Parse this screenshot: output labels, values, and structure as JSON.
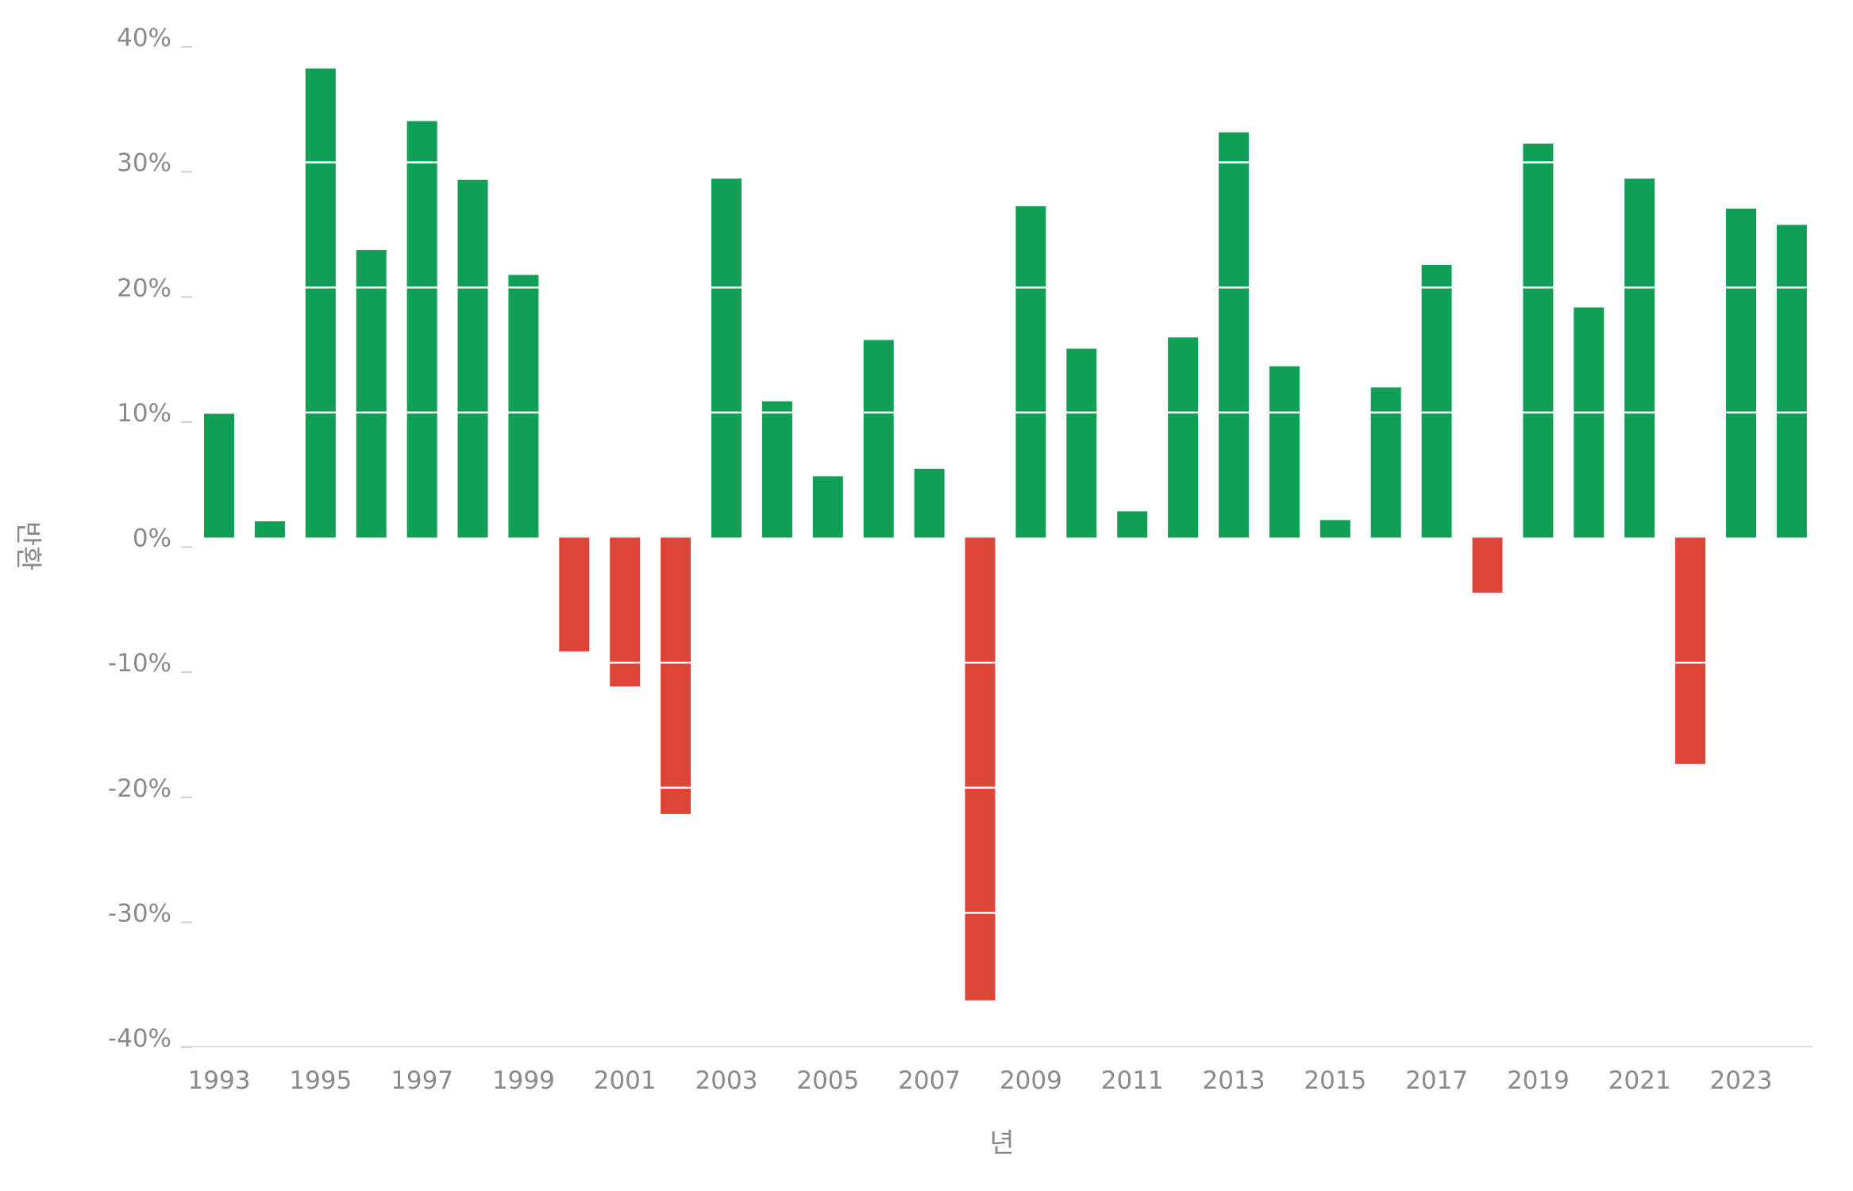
{
  "chart_data": {
    "type": "bar",
    "xlabel": "년",
    "ylabel": "반환",
    "ylim": [
      -40,
      40
    ],
    "yticks": [
      40,
      30,
      20,
      10,
      0,
      -10,
      -20,
      -30,
      -40
    ],
    "ytick_labels": [
      "40%",
      "30%",
      "20%",
      "10%",
      "0%",
      "-10%",
      "-20%",
      "-30%",
      "-40%"
    ],
    "xtick_labels": [
      "1993",
      "1995",
      "1997",
      "1999",
      "2001",
      "2003",
      "2005",
      "2007",
      "2009",
      "2011",
      "2013",
      "2015",
      "2017",
      "2019",
      "2021",
      "2023"
    ],
    "categories": [
      1993,
      1994,
      1995,
      1996,
      1997,
      1998,
      1999,
      2000,
      2001,
      2002,
      2003,
      2004,
      2005,
      2006,
      2007,
      2008,
      2009,
      2010,
      2011,
      2012,
      2013,
      2014,
      2015,
      2016,
      2017,
      2018,
      2019,
      2020,
      2021,
      2022,
      2023,
      2024
    ],
    "values": [
      9.9,
      1.3,
      37.5,
      23.0,
      33.3,
      28.6,
      21.0,
      -9.1,
      -11.9,
      -22.1,
      28.7,
      10.9,
      4.9,
      15.8,
      5.5,
      -37.0,
      26.5,
      15.1,
      2.1,
      16.0,
      32.4,
      13.7,
      1.4,
      12.0,
      21.8,
      -4.4,
      31.5,
      18.4,
      28.7,
      -18.1,
      26.3,
      25.0
    ],
    "colors": {
      "positive": "#119e57",
      "negative": "#dc4538",
      "axis": "#dddddd",
      "tick": "#8a8a8a"
    },
    "grid": false,
    "legend": "none"
  }
}
